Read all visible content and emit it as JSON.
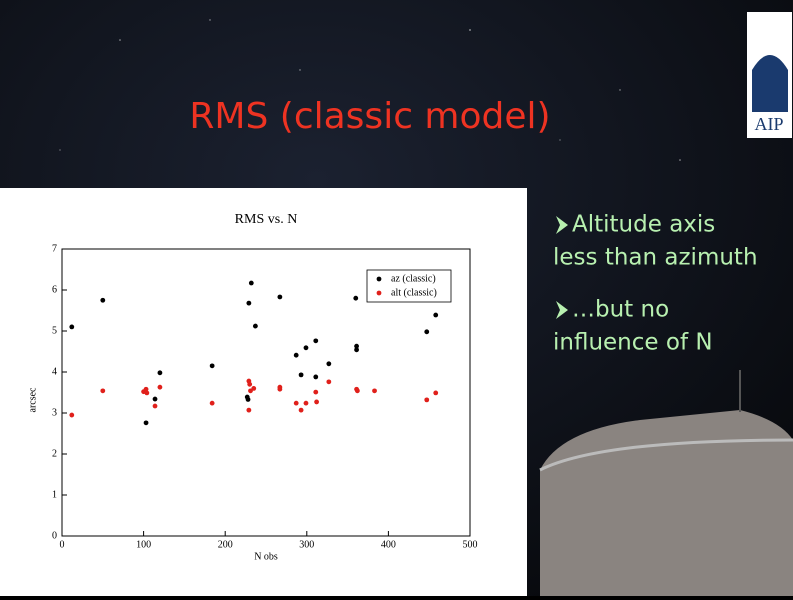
{
  "slide": {
    "title": "RMS (classic model)",
    "logo": "AIP",
    "bullets": [
      {
        "lines": [
          "Altitude axis",
          "less than azimuth"
        ]
      },
      {
        "lines": [
          "…but no",
          "influence of N"
        ]
      }
    ]
  },
  "chart_data": {
    "type": "scatter",
    "title": "RMS vs. N",
    "x_label": "N obs",
    "y_label": "arcsec",
    "xlim": [
      0,
      500
    ],
    "xticks": [
      0,
      100,
      200,
      300,
      400,
      500
    ],
    "ylim": [
      0,
      7
    ],
    "yticks": [
      0,
      1,
      2,
      3,
      4,
      5,
      6,
      7
    ],
    "legend": "top-right",
    "series": [
      {
        "name": "az (classic)",
        "color": "#000000",
        "x": [
          12,
          50,
          103,
          114,
          120,
          184,
          227,
          228,
          232,
          229,
          237,
          267,
          287,
          293,
          299,
          311,
          311,
          327,
          360,
          361,
          361,
          447,
          458
        ],
        "values": [
          5.1,
          5.75,
          2.76,
          3.34,
          3.98,
          4.15,
          3.39,
          3.33,
          6.17,
          5.68,
          5.12,
          5.83,
          4.41,
          3.93,
          4.59,
          3.88,
          4.76,
          4.2,
          5.8,
          4.63,
          4.54,
          4.98,
          5.39
        ]
      },
      {
        "name": "alt (classic)",
        "color": "#e0201b",
        "x": [
          12,
          50,
          100,
          103,
          104,
          114,
          120,
          184,
          229,
          230,
          231,
          229,
          235,
          267,
          267,
          287,
          293,
          299,
          311,
          312,
          327,
          361,
          362,
          383,
          447,
          458
        ],
        "values": [
          2.95,
          3.54,
          3.52,
          3.58,
          3.49,
          3.17,
          3.63,
          3.24,
          3.78,
          3.7,
          3.54,
          3.07,
          3.6,
          3.63,
          3.58,
          3.24,
          3.07,
          3.24,
          3.51,
          3.27,
          3.76,
          3.58,
          3.54,
          3.54,
          3.32,
          3.49
        ]
      }
    ]
  }
}
